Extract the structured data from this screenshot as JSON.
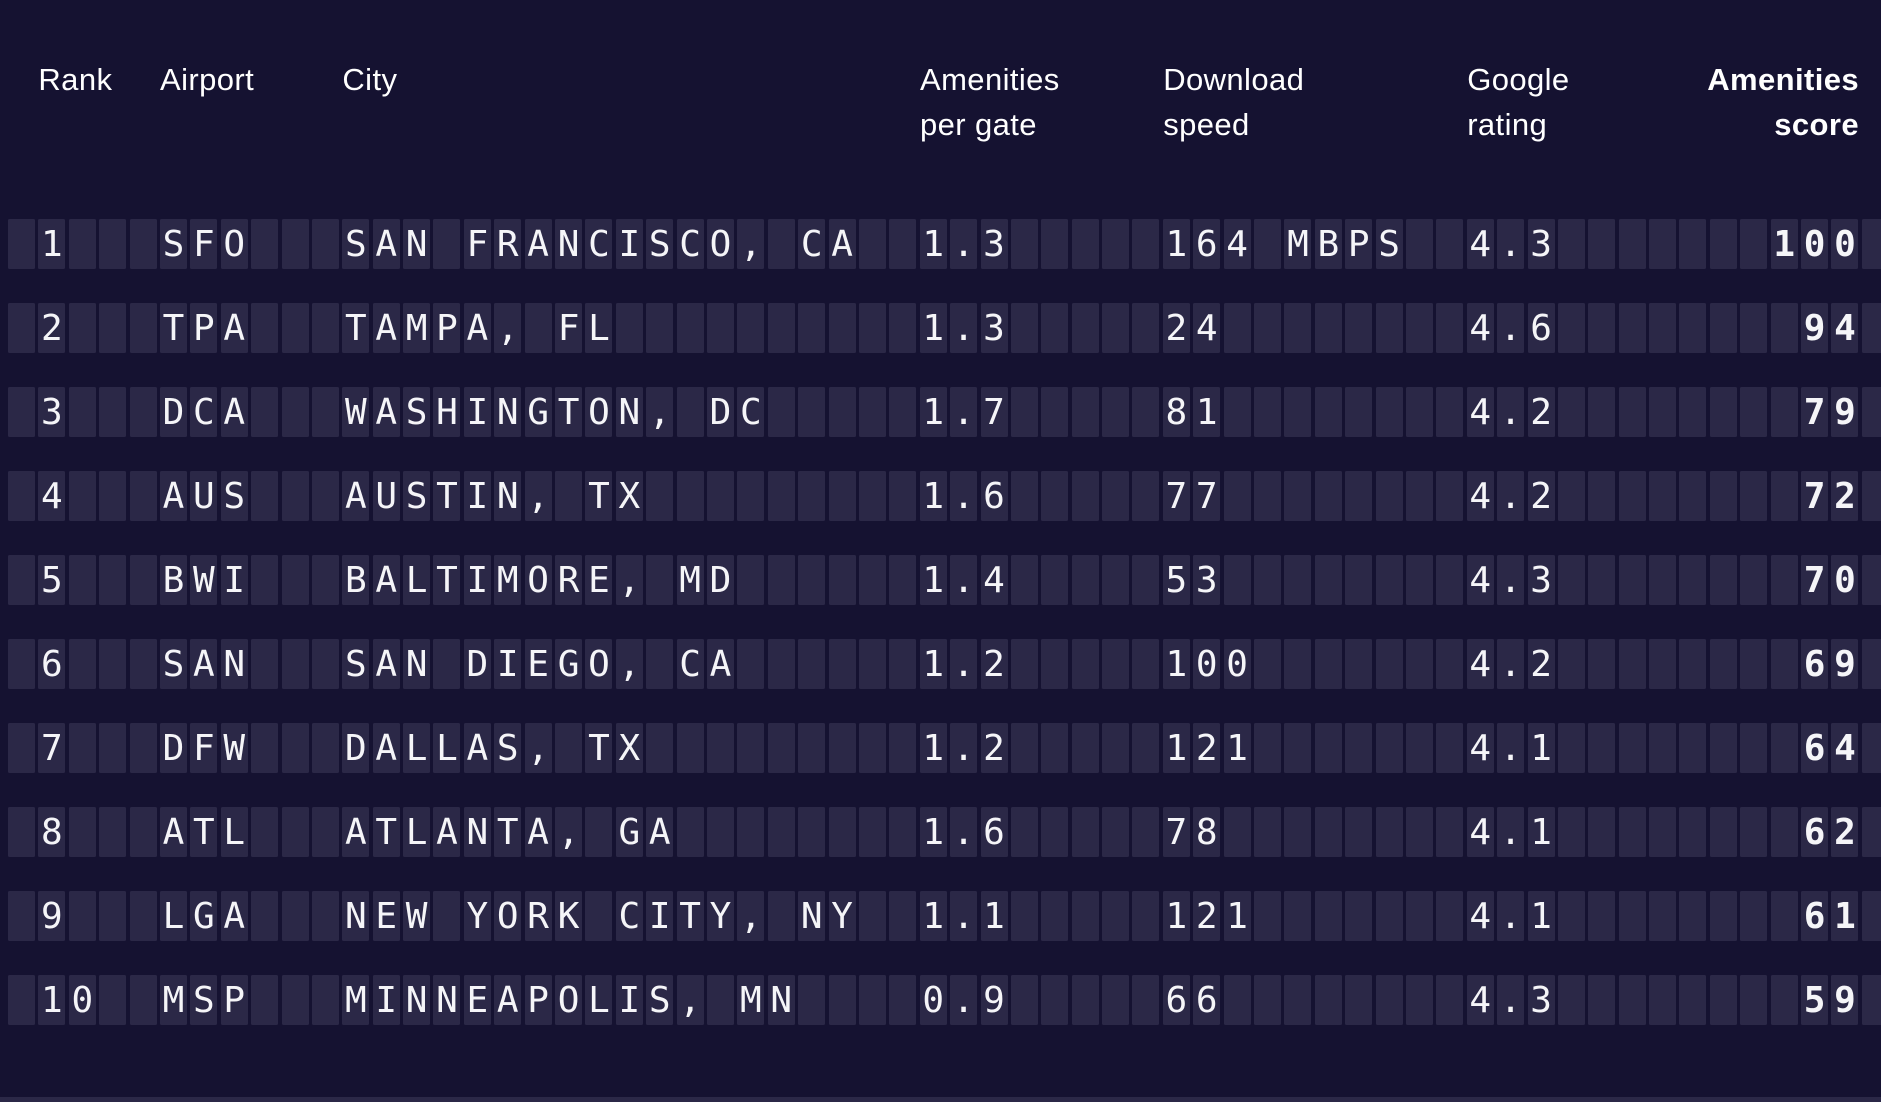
{
  "style": {
    "background_color": "#151231",
    "cell_color": "#2b2847",
    "text_color": "#f5f5f8",
    "header_color": "#ffffff"
  },
  "chart_data": {
    "type": "table",
    "title": "",
    "columns": [
      {
        "key": "rank",
        "label": "Rank"
      },
      {
        "key": "airport",
        "label": "Airport"
      },
      {
        "key": "city",
        "label": "City"
      },
      {
        "key": "amenities_per_gate",
        "label": "Amenities\nper gate"
      },
      {
        "key": "download_speed",
        "label": "Download\nspeed"
      },
      {
        "key": "google_rating",
        "label": "Google\nrating"
      },
      {
        "key": "amenities_score",
        "label": "Amenities\nscore",
        "emphasis": "bold",
        "align": "right"
      }
    ],
    "rows": [
      {
        "rank": "1",
        "airport": "SFO",
        "city": "SAN FRANCISCO, CA",
        "amenities_per_gate": "1.3",
        "download_speed": "164 MBPS",
        "google_rating": "4.3",
        "amenities_score": "100"
      },
      {
        "rank": "2",
        "airport": "TPA",
        "city": "TAMPA, FL",
        "amenities_per_gate": "1.3",
        "download_speed": "24",
        "google_rating": "4.6",
        "amenities_score": "94"
      },
      {
        "rank": "3",
        "airport": "DCA",
        "city": "WASHINGTON, DC",
        "amenities_per_gate": "1.7",
        "download_speed": "81",
        "google_rating": "4.2",
        "amenities_score": "79"
      },
      {
        "rank": "4",
        "airport": "AUS",
        "city": "AUSTIN, TX",
        "amenities_per_gate": "1.6",
        "download_speed": "77",
        "google_rating": "4.2",
        "amenities_score": "72"
      },
      {
        "rank": "5",
        "airport": "BWI",
        "city": "BALTIMORE, MD",
        "amenities_per_gate": "1.4",
        "download_speed": "53",
        "google_rating": "4.3",
        "amenities_score": "70"
      },
      {
        "rank": "6",
        "airport": "SAN",
        "city": "SAN DIEGO, CA",
        "amenities_per_gate": "1.2",
        "download_speed": "100",
        "google_rating": "4.2",
        "amenities_score": "69"
      },
      {
        "rank": "7",
        "airport": "DFW",
        "city": "DALLAS, TX",
        "amenities_per_gate": "1.2",
        "download_speed": "121",
        "google_rating": "4.1",
        "amenities_score": "64"
      },
      {
        "rank": "8",
        "airport": "ATL",
        "city": "ATLANTA, GA",
        "amenities_per_gate": "1.6",
        "download_speed": "78",
        "google_rating": "4.1",
        "amenities_score": "62"
      },
      {
        "rank": "9",
        "airport": "LGA",
        "city": "NEW YORK CITY, NY",
        "amenities_per_gate": "1.1",
        "download_speed": "121",
        "google_rating": "4.1",
        "amenities_score": "61"
      },
      {
        "rank": "10",
        "airport": "MSP",
        "city": "MINNEAPOLIS, MN",
        "amenities_per_gate": "0.9",
        "download_speed": "66",
        "google_rating": "4.3",
        "amenities_score": "59"
      }
    ]
  }
}
